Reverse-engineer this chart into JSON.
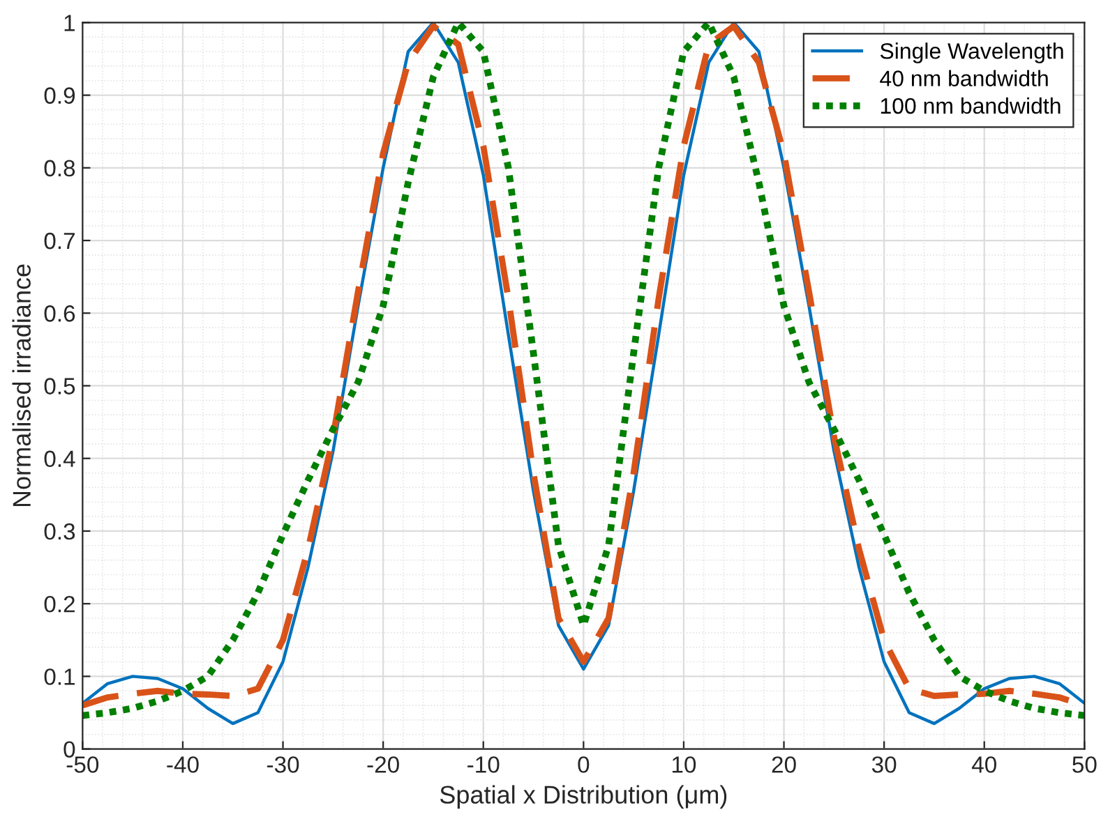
{
  "chart_data": {
    "type": "line",
    "xlabel": "Spatial x Distribution (μm)",
    "ylabel": "Normalised irradiance",
    "x": [
      -50,
      -47.5,
      -45,
      -42.5,
      -40,
      -37.5,
      -35,
      -32.5,
      -30,
      -27.5,
      -25,
      -22.5,
      -20,
      -17.5,
      -15,
      -12.5,
      -10,
      -7.5,
      -5,
      -2.5,
      0,
      2.5,
      5,
      7.5,
      10,
      12.5,
      15,
      17.5,
      20,
      22.5,
      25,
      27.5,
      30,
      32.5,
      35,
      37.5,
      40,
      42.5,
      45,
      47.5,
      50
    ],
    "series": [
      {
        "name": "Single Wavelength",
        "color": "#0072bd",
        "line_style": "solid",
        "values": [
          0.063,
          0.09,
          0.1,
          0.097,
          0.083,
          0.056,
          0.035,
          0.05,
          0.12,
          0.25,
          0.41,
          0.61,
          0.8,
          0.96,
          1.0,
          0.945,
          0.79,
          0.57,
          0.355,
          0.17,
          0.11,
          0.17,
          0.355,
          0.57,
          0.79,
          0.945,
          1.0,
          0.96,
          0.8,
          0.61,
          0.41,
          0.25,
          0.12,
          0.05,
          0.035,
          0.056,
          0.083,
          0.097,
          0.1,
          0.09,
          0.063
        ]
      },
      {
        "name": "40 nm bandwidth",
        "color": "#d95319",
        "line_style": "dashed",
        "values": [
          0.06,
          0.071,
          0.076,
          0.08,
          0.076,
          0.075,
          0.073,
          0.083,
          0.15,
          0.275,
          0.43,
          0.63,
          0.82,
          0.945,
          0.995,
          0.97,
          0.83,
          0.62,
          0.38,
          0.18,
          0.12,
          0.18,
          0.38,
          0.62,
          0.83,
          0.97,
          0.995,
          0.945,
          0.82,
          0.63,
          0.43,
          0.275,
          0.15,
          0.083,
          0.073,
          0.075,
          0.076,
          0.08,
          0.076,
          0.071,
          0.06
        ]
      },
      {
        "name": "100 nm bandwidth",
        "color": "#007f00",
        "line_style": "dotted",
        "values": [
          0.046,
          0.05,
          0.056,
          0.066,
          0.08,
          0.1,
          0.15,
          0.215,
          0.295,
          0.37,
          0.44,
          0.505,
          0.61,
          0.78,
          0.925,
          1.0,
          0.96,
          0.8,
          0.545,
          0.28,
          0.17,
          0.28,
          0.545,
          0.8,
          0.96,
          1.0,
          0.925,
          0.78,
          0.61,
          0.505,
          0.44,
          0.37,
          0.295,
          0.215,
          0.15,
          0.1,
          0.08,
          0.066,
          0.056,
          0.05,
          0.046
        ]
      }
    ],
    "xlim": [
      -50,
      50
    ],
    "xticks": [
      -50,
      -40,
      -30,
      -20,
      -10,
      0,
      10,
      20,
      30,
      40,
      50
    ],
    "ylim": [
      0,
      1
    ],
    "yticks": [
      0,
      0.1,
      0.2,
      0.3,
      0.4,
      0.5,
      0.6,
      0.7,
      0.8,
      0.9,
      1
    ],
    "grid": true,
    "legend": "top right"
  }
}
